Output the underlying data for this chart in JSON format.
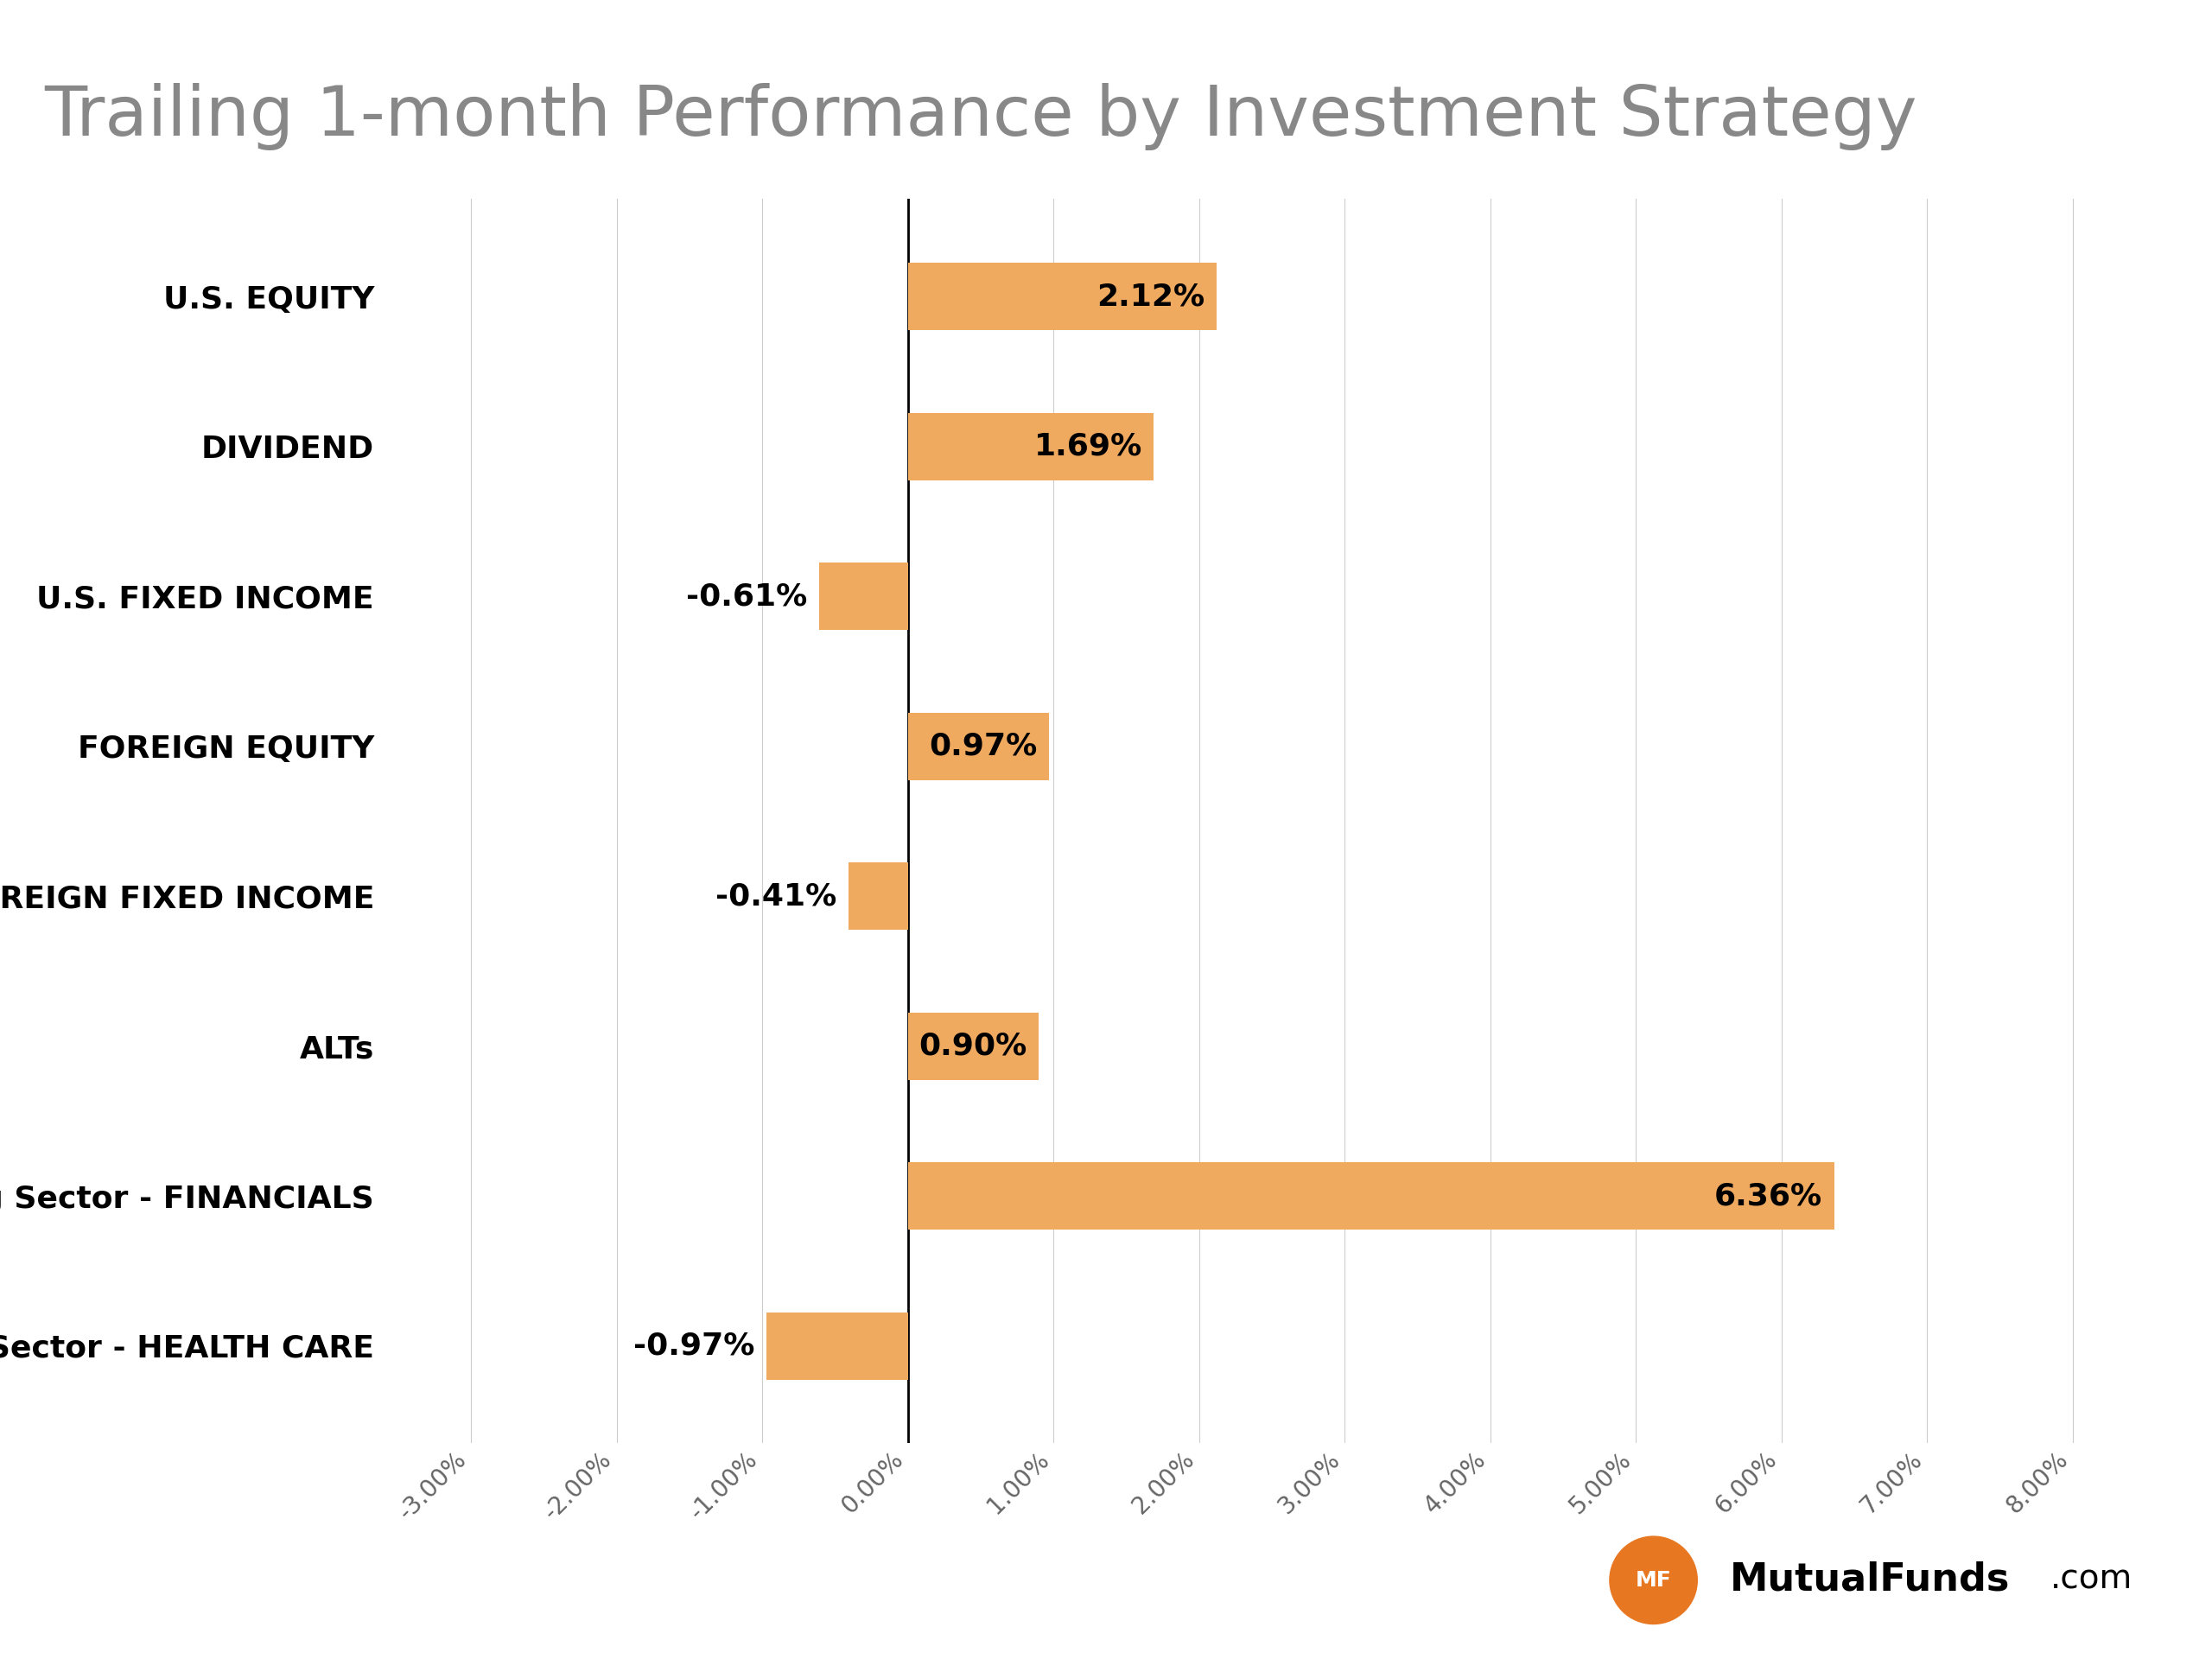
{
  "title": "Trailing 1-month Performance by Investment Strategy",
  "title_color": "#888888",
  "title_fontsize": 58,
  "categories": [
    "U.S. EQUITY",
    "DIVIDEND",
    "U.S. FIXED INCOME",
    "FOREIGN EQUITY",
    "FOREIGN FIXED INCOME",
    "ALTs",
    "Winning Sector - FINANCIALS",
    "Losing Sector - HEALTH CARE"
  ],
  "values": [
    2.12,
    1.69,
    -0.61,
    0.97,
    -0.41,
    0.9,
    6.36,
    -0.97
  ],
  "bar_color": "#f0aa60",
  "label_fontsize": 26,
  "value_fontsize": 26,
  "xlim": [
    -3.5,
    8.5
  ],
  "xticks": [
    -3.0,
    -2.0,
    -1.0,
    0.0,
    1.0,
    2.0,
    3.0,
    4.0,
    5.0,
    6.0,
    7.0,
    8.0
  ],
  "xtick_labels": [
    "-3.00%",
    "-2.00%",
    "-1.00%",
    "0.00%",
    "1.00%",
    "2.00%",
    "3.00%",
    "4.00%",
    "5.00%",
    "6.00%",
    "7.00%",
    "8.00%"
  ],
  "background_color": "#ffffff",
  "grid_color": "#cccccc",
  "zero_line_color": "#000000",
  "bar_height": 0.45,
  "logo_text_site": "MutualFunds",
  "logo_text_com": ".com",
  "logo_circle_color": "#e87722",
  "logo_fontsize_bold": 32,
  "logo_fontsize_com": 28
}
